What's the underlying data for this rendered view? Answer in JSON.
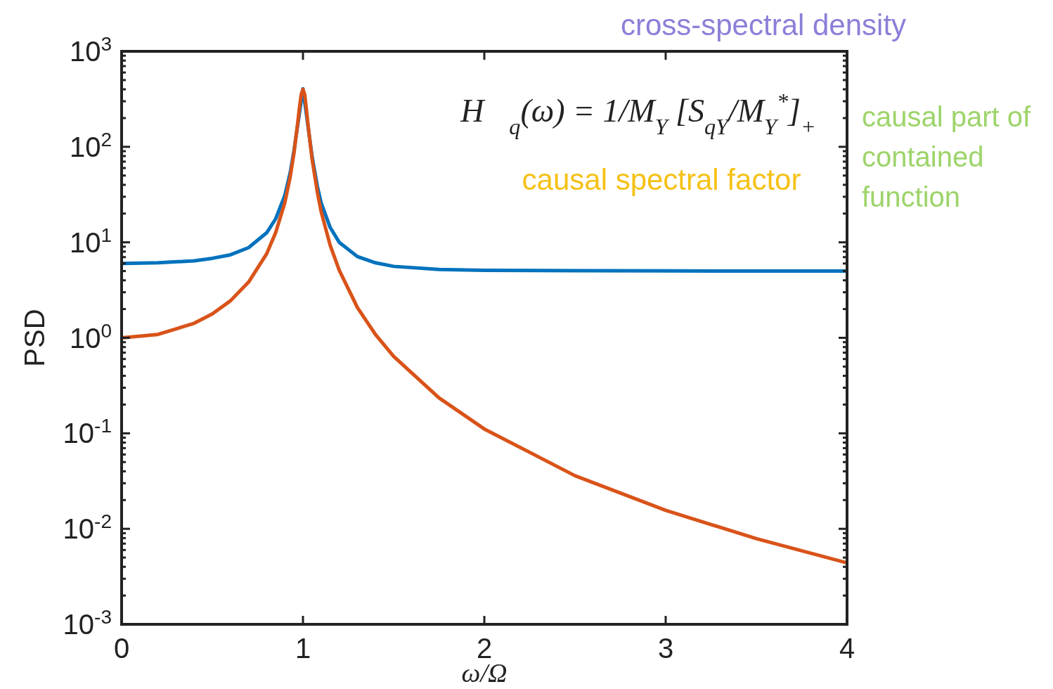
{
  "chart_data": {
    "type": "line",
    "xlabel": "ω/Ω",
    "ylabel": "PSD",
    "log": "y",
    "xlim": [
      0,
      4
    ],
    "ylim": [
      0.001,
      1000
    ],
    "xticks": [
      0,
      1,
      2,
      3,
      4
    ],
    "yticks": [
      {
        "value": 0.001,
        "label": "10$^{-3}$"
      },
      {
        "value": 0.01,
        "label": "10$^{-2}$"
      },
      {
        "value": 0.1,
        "label": "10$^{-1}$"
      },
      {
        "value": 1,
        "label": "10$^{0}$"
      },
      {
        "value": 10,
        "label": "10$^{1}$"
      },
      {
        "value": 100,
        "label": "10$^{2}$"
      },
      {
        "value": 1000,
        "label": "10$^{3}$"
      }
    ],
    "grid": false,
    "line_style": "solid",
    "marker": "none",
    "x": [
      0,
      0.2,
      0.4,
      0.5,
      0.6,
      0.7,
      0.8,
      0.85,
      0.9,
      0.93,
      0.95,
      0.97,
      0.98,
      0.99,
      1,
      1.01,
      1.02,
      1.03,
      1.05,
      1.08,
      1.1,
      1.15,
      1.2,
      1.3,
      1.4,
      1.5,
      1.75,
      2,
      2.5,
      3,
      3.5,
      4
    ],
    "series": [
      {
        "color": "#0072bd",
        "values": [
          6,
          6.1,
          6.4,
          6.8,
          7.4,
          8.8,
          12.6,
          17.7,
          31,
          54,
          90,
          null,
          null,
          null,
          405,
          null,
          null,
          null,
          80,
          38,
          26,
          14.3,
          10,
          7.1,
          6.1,
          5.6,
          5.2,
          5.1,
          5.04,
          5.02,
          5.01,
          5
        ]
      },
      {
        "color": "#d95319",
        "values": [
          1,
          1.085,
          1.42,
          1.78,
          2.44,
          3.83,
          7.6,
          12.7,
          26,
          49,
          85,
          171,
          252,
          351,
          400,
          350,
          236,
          157,
          75,
          33,
          21,
          9.3,
          5.1,
          2.08,
          1.08,
          0.64,
          0.235,
          0.111,
          0.036,
          0.0156,
          0.0079,
          0.0044
        ]
      }
    ],
    "annotations": [
      "cross-spectral density",
      "H⃗$_{q}$(ω) = 1/M$_{Y}$ [S$_{qY}$/M$_{Y}$$^{*}$]$_{+}$",
      "causal spectral factor",
      "causal part of contained function"
    ]
  }
}
